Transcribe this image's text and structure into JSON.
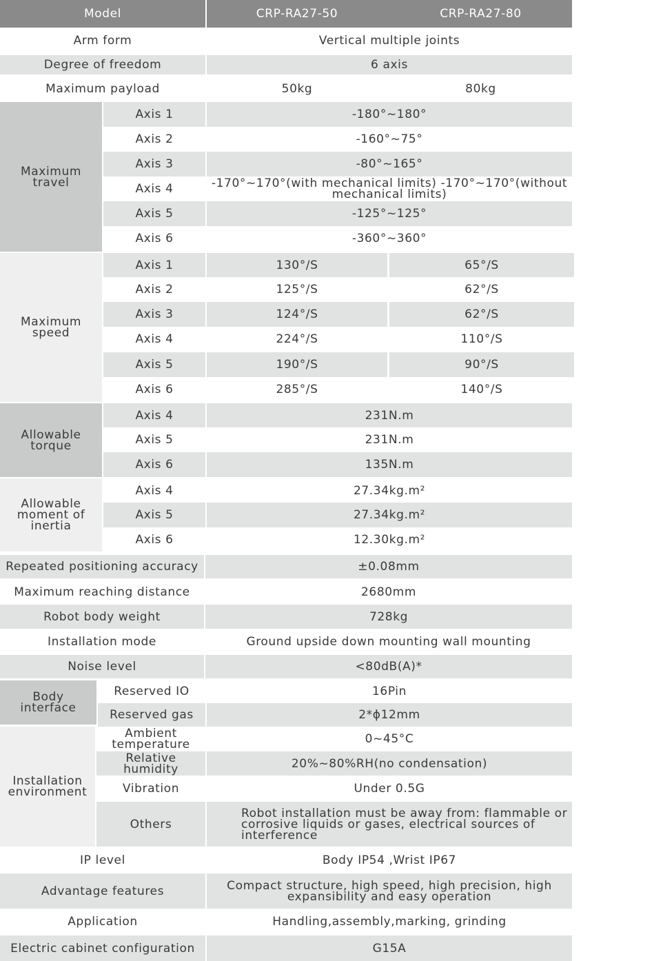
{
  "colors": {
    "header": "#8a8a8a",
    "row_gray": "#e1e2e2",
    "group_dark": "#c9caca",
    "group_light": "#efefef",
    "text": "#3a3a3a"
  },
  "header": {
    "model_label": "Model",
    "models": [
      "CRP-RA27-50",
      "CRP-RA27-80"
    ]
  },
  "arm_form": {
    "label": "Arm form",
    "value": "Vertical multiple joints"
  },
  "dof": {
    "label": "Degree of freedom",
    "value": "6 axis"
  },
  "payload": {
    "label": "Maximum payload",
    "values": [
      "50kg",
      "80kg"
    ]
  },
  "travel": {
    "label": "Maximum travel",
    "axes": [
      "Axis 1",
      "Axis 2",
      "Axis 3",
      "Axis 4",
      "Axis 5",
      "Axis 6"
    ],
    "values": [
      "-180°~180°",
      "-160°~75°",
      "-80°~165°",
      "-170°~170°(with mechanical limits) -170°~170°(without mechanical limits)",
      "-125°~125°",
      "-360°~360°"
    ]
  },
  "speed": {
    "label": "Maximum speed",
    "axes": [
      "Axis 1",
      "Axis 2",
      "Axis 3",
      "Axis 4",
      "Axis 5",
      "Axis 6"
    ],
    "values_50": [
      "130°/S",
      "125°/S",
      "124°/S",
      "224°/S",
      "190°/S",
      "285°/S"
    ],
    "values_80": [
      "65°/S",
      "62°/S",
      "62°/S",
      "110°/S",
      "90°/S",
      "140°/S"
    ]
  },
  "torque": {
    "label": "Allowable torque",
    "axes": [
      "Axis 4",
      "Axis 5",
      "Axis 6"
    ],
    "values": [
      "231N.m",
      "231N.m",
      "135N.m"
    ]
  },
  "inertia": {
    "label": "Allowable moment of inertia",
    "axes": [
      "Axis 4",
      "Axis 5",
      "Axis 6"
    ],
    "values": [
      "27.34kg.m²",
      "27.34kg.m²",
      "12.30kg.m²"
    ]
  },
  "repeat": {
    "label": "Repeated positioning accuracy",
    "value": "±0.08mm"
  },
  "reach": {
    "label": "Maximum reaching distance",
    "value": "2680mm"
  },
  "weight": {
    "label": "Robot body weight",
    "value": "728kg"
  },
  "install_mode": {
    "label": "Installation mode",
    "value": "Ground  upside down mounting  wall mounting"
  },
  "noise": {
    "label": "Noise level",
    "value": "<80dB(A)*"
  },
  "body_interface": {
    "label": "Body interface",
    "items": [
      {
        "label": "Reserved IO",
        "value": "16Pin"
      },
      {
        "label": "Reserved gas",
        "value": "2*ϕ12mm"
      }
    ]
  },
  "environment": {
    "label": "Installation environment",
    "items": [
      {
        "label": "Ambient temperature",
        "value": "0~45°C"
      },
      {
        "label": "Relative humidity",
        "value": "20%~80%RH(no condensation)"
      },
      {
        "label": "Vibration",
        "value": "Under 0.5G"
      },
      {
        "label": "Others",
        "value": "Robot installation must be away from: flammable or corrosive liquids or gases, electrical sources of interference"
      }
    ]
  },
  "ip": {
    "label": "IP level",
    "value": "Body IP54 ,Wrist IP67"
  },
  "advantage": {
    "label": "Advantage features",
    "value": "Compact structure, high speed, high precision, high expansibility and easy operation"
  },
  "application": {
    "label": "Application",
    "value": "Handling,assembly,marking, grinding"
  },
  "cabinet": {
    "label": "Electric cabinet configuration",
    "value": "G15A"
  }
}
